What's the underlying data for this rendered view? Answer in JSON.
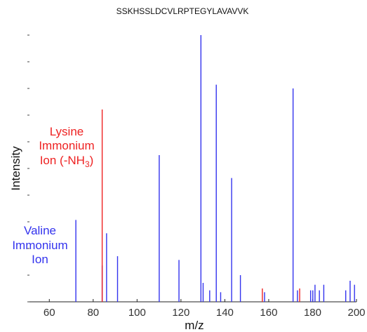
{
  "chart_data": {
    "type": "bar",
    "title": "SSKHSSLDCVLRPTEGYLAVAVVK",
    "xlabel": "m/z",
    "ylabel": "Intensity",
    "xlim": [
      50,
      200
    ],
    "ylim": [
      0,
      100
    ],
    "xticks": [
      60,
      80,
      100,
      120,
      140,
      160,
      180,
      200
    ],
    "grid": false,
    "colors": {
      "blue": "#3333ee",
      "red": "#ee2222"
    },
    "annotations": {
      "lysine": [
        "Lysine",
        "Immonium",
        "Ion (-NH",
        "3",
        ")"
      ],
      "valine": [
        "Valine",
        "Immonium",
        "Ion"
      ]
    },
    "series": [
      {
        "color": "blue",
        "x": [
          72.1,
          84.1,
          86.1,
          91.1,
          110.1,
          119.1,
          129.1,
          130.1,
          133.1,
          136.1,
          138.1,
          143.1,
          147.1,
          158.1,
          171.1,
          173.1,
          179.1,
          180.1,
          181.1,
          183.1,
          185.1,
          195.1,
          197.1,
          199.1
        ],
        "y": [
          30.7,
          13.6,
          25.7,
          17.1,
          55.0,
          15.7,
          100.0,
          7.1,
          4.3,
          81.4,
          3.6,
          46.4,
          10.0,
          3.6,
          80.0,
          4.3,
          4.3,
          4.3,
          6.4,
          4.3,
          6.4,
          4.3,
          7.9,
          6.4
        ]
      },
      {
        "color": "red",
        "x": [
          84.1,
          157.1,
          174.1
        ],
        "y": [
          72.1,
          5.0,
          5.0
        ]
      }
    ]
  }
}
